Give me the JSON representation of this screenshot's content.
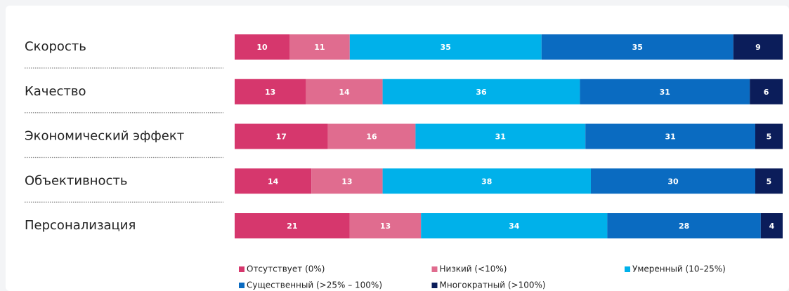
{
  "chart_data": {
    "type": "stacked_barh",
    "categories": [
      "Скорость",
      "Качество",
      "Экономический эффект",
      "Объективность",
      "Персонализация"
    ],
    "xlim": [
      0,
      100
    ],
    "series": [
      {
        "name": "Отсутствует (0%)",
        "color": "#d6376d",
        "values": [
          10,
          13,
          17,
          14,
          21
        ]
      },
      {
        "name": "Низкий (<10%)",
        "color": "#e06c8f",
        "values": [
          11,
          14,
          16,
          13,
          13
        ]
      },
      {
        "name": "Умеренный (10–25%)",
        "color": "#00b1ea",
        "values": [
          35,
          36,
          31,
          38,
          34
        ]
      },
      {
        "name": "Существенный (>25% – 100%)",
        "color": "#0a6bc1",
        "values": [
          35,
          31,
          31,
          30,
          28
        ]
      },
      {
        "name": "Многократный (>100%)",
        "color": "#0b1d5a",
        "values": [
          9,
          6,
          5,
          5,
          4
        ]
      }
    ]
  }
}
